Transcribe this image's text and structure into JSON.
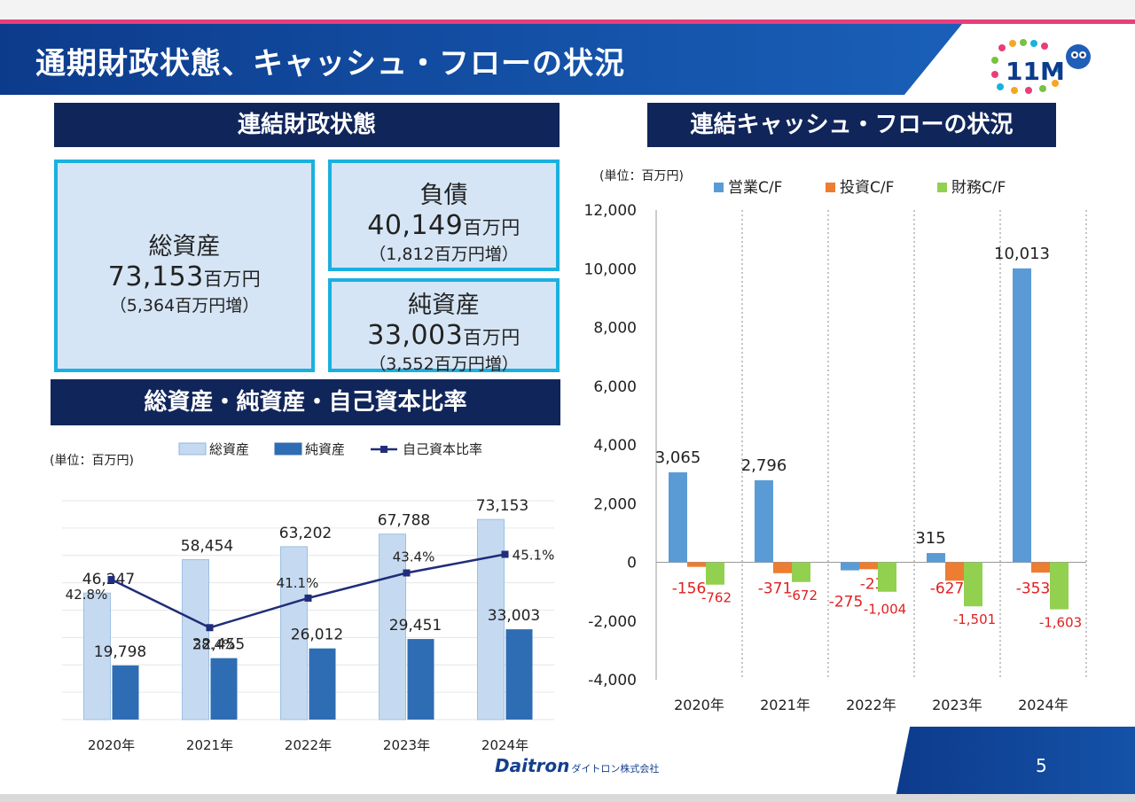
{
  "header": {
    "title": "通期財政状態、キャッシュ・フローの状況"
  },
  "sections": {
    "balance": "連結財政状態",
    "cashflow": "連結キャッシュ・フローの状況",
    "assets_chart": "総資産・純資産・自己資本比率"
  },
  "boxes": {
    "total_assets": {
      "label": "総資産",
      "value": "73,153",
      "unit": "百万円",
      "change": "（5,364百万円増）"
    },
    "liabilities": {
      "label": "負債",
      "value": "40,149",
      "unit": "百万円",
      "change": "（1,812百万円増）"
    },
    "net_assets": {
      "label": "純資産",
      "value": "33,003",
      "unit": "百万円",
      "change": "（3,552百万円増）"
    }
  },
  "unit_notes": {
    "left": "(単位：百万円)",
    "right": "(単位：百万円)"
  },
  "footer": {
    "company": "Daitron",
    "company_kana": "ダイトロン株式会社",
    "page": "5"
  },
  "colors": {
    "navy": "#10255a",
    "cyan_border": "#1ab0e0",
    "light_bar": "#c5daf0",
    "dark_bar": "#2e6db4",
    "ratio_line": "#1f2d7a",
    "op": "#5b9bd5",
    "inv": "#ed7d31",
    "fin": "#92d050",
    "neg_label": "#e02020"
  },
  "chart_data": [
    {
      "type": "bar",
      "categories": [
        "2020年",
        "2021年",
        "2022年",
        "2023年",
        "2024年"
      ],
      "series": [
        {
          "name": "総資産",
          "values": [
            46247,
            58454,
            63202,
            67788,
            73153
          ],
          "labels": [
            "46,247",
            "58,454",
            "63,202",
            "67,788",
            "73,153"
          ]
        },
        {
          "name": "純資産",
          "values": [
            19798,
            22455,
            26012,
            29451,
            33003
          ],
          "labels": [
            "19,798",
            "22,455",
            "26,012",
            "29,451",
            "33,003"
          ]
        },
        {
          "name": "自己資本比率",
          "type": "line",
          "values": [
            42.8,
            38.4,
            41.1,
            43.4,
            45.1
          ],
          "labels": [
            "42.8%",
            "38.4%",
            "41.1%",
            "43.4%",
            "45.1%"
          ]
        }
      ],
      "ylim": [
        0,
        80000
      ],
      "ratio_ylim": [
        30,
        50
      ],
      "grid": true,
      "legend": "top"
    },
    {
      "type": "bar",
      "categories": [
        "2020年",
        "2021年",
        "2022年",
        "2023年",
        "2024年"
      ],
      "series": [
        {
          "name": "営業C/F",
          "values": [
            3065,
            2796,
            -275,
            315,
            10013
          ],
          "labels": [
            "3,065",
            "2,796",
            "-275",
            "315",
            "10,013"
          ]
        },
        {
          "name": "投資C/F",
          "values": [
            -156,
            -371,
            -237,
            -627,
            -353
          ],
          "labels": [
            "-156",
            "-371",
            "-237",
            "-627",
            "-353"
          ]
        },
        {
          "name": "財務C/F",
          "values": [
            -762,
            -672,
            -1004,
            -1501,
            -1603
          ],
          "labels": [
            "-762",
            "-672",
            "-1,004",
            "-1,501",
            "-1,603"
          ]
        }
      ],
      "yticks": [
        "12,000",
        "10,000",
        "8,000",
        "6,000",
        "4,000",
        "2,000",
        "0",
        "-2,000",
        "-4,000"
      ],
      "ylim": [
        -4000,
        12000
      ],
      "legend": "top"
    }
  ]
}
